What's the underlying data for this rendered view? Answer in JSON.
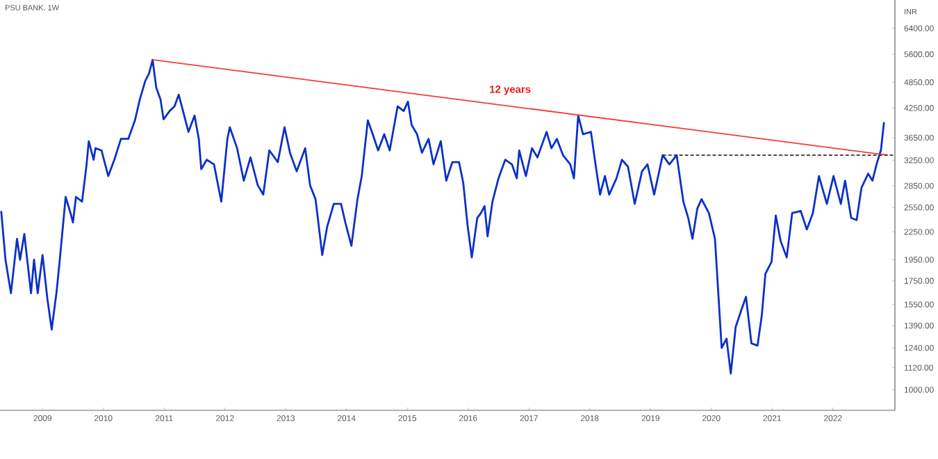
{
  "chart_data": {
    "type": "line",
    "title": "PSU BANK, 1W",
    "ylabel": "INR",
    "log": "y",
    "grid": false,
    "marker": "none",
    "xlim": [
      2008.3,
      2023.02
    ],
    "ylim": [
      900,
      7400
    ],
    "xticks": [
      2009,
      2010,
      2011,
      2012,
      2013,
      2014,
      2015,
      2016,
      2017,
      2018,
      2019,
      2020,
      2021,
      2022
    ],
    "yticks": [
      {
        "value": 1000,
        "label": "1000.00"
      },
      {
        "value": 1120,
        "label": "1120.00"
      },
      {
        "value": 1240,
        "label": "1240.00"
      },
      {
        "value": 1390,
        "label": "1390.00"
      },
      {
        "value": 1550,
        "label": "1550.00"
      },
      {
        "value": 1750,
        "label": "1750.00"
      },
      {
        "value": 1950,
        "label": "1950.00"
      },
      {
        "value": 2250,
        "label": "2250.00"
      },
      {
        "value": 2550,
        "label": "2550.00"
      },
      {
        "value": 2850,
        "label": "2850.00"
      },
      {
        "value": 3250,
        "label": "3250.00"
      },
      {
        "value": 3650,
        "label": "3650.00"
      },
      {
        "value": 4250,
        "label": "4250.00"
      },
      {
        "value": 4850,
        "label": "4850.00"
      },
      {
        "value": 5600,
        "label": "5600.00"
      },
      {
        "value": 6400,
        "label": "6400.00"
      }
    ],
    "series": [
      {
        "color": "#0b30c8",
        "x": [
          2008.32,
          2008.39,
          2008.48,
          2008.58,
          2008.63,
          2008.7,
          2008.81,
          2008.86,
          2008.92,
          2009.0,
          2009.08,
          2009.15,
          2009.23,
          2009.28,
          2009.38,
          2009.46,
          2009.5,
          2009.55,
          2009.65,
          2009.72,
          2009.76,
          2009.84,
          2009.87,
          2009.97,
          2010.08,
          2010.18,
          2010.29,
          2010.41,
          2010.52,
          2010.6,
          2010.69,
          2010.75,
          2010.81,
          2010.87,
          2010.94,
          2010.99,
          2011.09,
          2011.17,
          2011.24,
          2011.32,
          2011.4,
          2011.5,
          2011.57,
          2011.61,
          2011.7,
          2011.82,
          2011.94,
          2012.04,
          2012.08,
          2012.2,
          2012.31,
          2012.42,
          2012.54,
          2012.63,
          2012.73,
          2012.87,
          2012.98,
          2013.07,
          2013.18,
          2013.32,
          2013.4,
          2013.49,
          2013.6,
          2013.68,
          2013.79,
          2013.91,
          2013.98,
          2014.08,
          2014.18,
          2014.25,
          2014.35,
          2014.43,
          2014.52,
          2014.62,
          2014.71,
          2014.84,
          2014.94,
          2015.01,
          2015.07,
          2015.16,
          2015.24,
          2015.35,
          2015.43,
          2015.55,
          2015.64,
          2015.74,
          2015.85,
          2015.92,
          2015.99,
          2016.06,
          2016.15,
          2016.21,
          2016.27,
          2016.32,
          2016.4,
          2016.5,
          2016.61,
          2016.72,
          2016.8,
          2016.84,
          2016.95,
          2017.05,
          2017.14,
          2017.29,
          2017.37,
          2017.46,
          2017.56,
          2017.68,
          2017.74,
          2017.81,
          2017.89,
          2018.02,
          2018.09,
          2018.17,
          2018.25,
          2018.32,
          2018.44,
          2018.53,
          2018.63,
          2018.74,
          2018.86,
          2018.95,
          2019.06,
          2019.2,
          2019.31,
          2019.43,
          2019.54,
          2019.62,
          2019.69,
          2019.77,
          2019.84,
          2019.96,
          2020.06,
          2020.17,
          2020.25,
          2020.32,
          2020.4,
          2020.49,
          2020.57,
          2020.66,
          2020.76,
          2020.83,
          2020.89,
          2020.99,
          2021.06,
          2021.14,
          2021.24,
          2021.33,
          2021.47,
          2021.57,
          2021.67,
          2021.77,
          2021.9,
          2022.01,
          2022.13,
          2022.2,
          2022.3,
          2022.39,
          2022.47,
          2022.58,
          2022.65,
          2022.72,
          2022.79,
          2022.84
        ],
        "values": [
          2505,
          1950,
          1642,
          2171,
          1950,
          2225,
          1642,
          1950,
          1642,
          1998,
          1592,
          1363,
          1651,
          1928,
          2691,
          2477,
          2361,
          2691,
          2628,
          3143,
          3584,
          3258,
          3457,
          3418,
          2996,
          3258,
          3627,
          3627,
          3989,
          4442,
          4889,
          5067,
          5443,
          4717,
          4442,
          4009,
          4185,
          4286,
          4551,
          4135,
          3760,
          4088,
          3627,
          3105,
          3258,
          3182,
          2628,
          3627,
          3849,
          3457,
          2926,
          3298,
          2858,
          2724,
          3418,
          3219,
          3849,
          3377,
          3070,
          3457,
          2858,
          2661,
          1998,
          2306,
          2597,
          2597,
          2361,
          2095,
          2661,
          2996,
          3989,
          3714,
          3418,
          3714,
          3418,
          4286,
          4185,
          4391,
          3896,
          3714,
          3377,
          3627,
          3182,
          3584,
          2926,
          3219,
          3219,
          2891,
          2332,
          1974,
          2417,
          2477,
          2567,
          2198,
          2628,
          2962,
          3258,
          3182,
          2962,
          3418,
          2996,
          3457,
          3298,
          3760,
          3457,
          3627,
          3336,
          3182,
          2962,
          4088,
          3714,
          3760,
          3219,
          2724,
          2996,
          2724,
          2962,
          3258,
          3143,
          2597,
          3070,
          3182,
          2724,
          3336,
          3182,
          3336,
          2628,
          2417,
          2171,
          2536,
          2661,
          2477,
          2171,
          1240,
          1300,
          1087,
          1380,
          1501,
          1612,
          1269,
          1255,
          1465,
          1815,
          1928,
          2447,
          2146,
          1974,
          2477,
          2505,
          2278,
          2477,
          2996,
          2597,
          2996,
          2597,
          2926,
          2417,
          2390,
          2823,
          3033,
          2926,
          3189,
          3425,
          3952
        ]
      },
      {
        "color": "#f03c3c",
        "x": [
          2010.81,
          2022.9
        ],
        "values": [
          5443,
          3336
        ]
      },
      {
        "color": "#333333",
        "x": [
          2019.2,
          2023.0
        ],
        "values": [
          3336,
          3336
        ],
        "line_style": "dashed"
      }
    ],
    "annotations": [
      "12 years"
    ]
  }
}
